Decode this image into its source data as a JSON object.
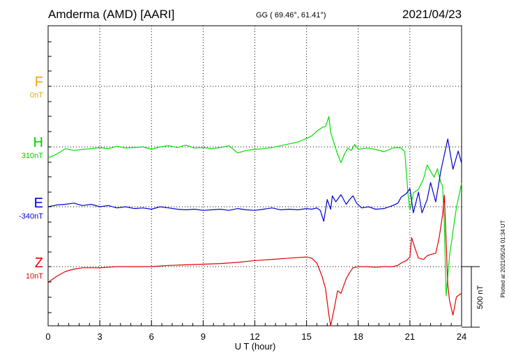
{
  "header": {
    "station": "Amderma (AMD)  [AARI]",
    "coords": "GG ( 69.46°,  61.41°)",
    "date": "2021/04/23"
  },
  "plotted_note": "Plotted at 2021/05/24 01:34 UT",
  "colors": {
    "F": "#f0a800",
    "H": "#00e000",
    "E": "#0000d0",
    "Z": "#e00000",
    "axis": "#000000"
  },
  "chart_data": {
    "type": "line",
    "xlabel": "U T (hour)",
    "xlim": [
      0,
      24
    ],
    "xticks": [
      "0",
      "3",
      "6",
      "9",
      "12",
      "15",
      "18",
      "21",
      "24"
    ],
    "scale_bar": "500 nT",
    "series": [
      {
        "name": "F",
        "baseline": "0nT",
        "values": []
      },
      {
        "name": "H",
        "baseline": "310nT",
        "x": [
          0,
          0.5,
          1,
          1.5,
          2,
          2.5,
          3,
          3.5,
          4,
          4.5,
          5,
          5.5,
          6,
          6.5,
          7,
          7.5,
          8,
          8.5,
          9,
          9.5,
          10,
          10.5,
          11,
          11.5,
          12,
          12.5,
          13,
          13.5,
          14,
          14.5,
          15,
          15.3,
          15.6,
          15.9,
          16.1,
          16.3,
          16.4,
          16.6,
          16.8,
          17,
          17.2,
          17.4,
          17.6,
          17.8,
          18,
          18.5,
          19,
          19.5,
          20,
          20.3,
          20.5,
          20.7,
          20.8,
          20.9,
          21,
          21.2,
          21.5,
          21.8,
          22,
          22.2,
          22.4,
          22.6,
          22.8,
          22.9,
          23,
          23.1,
          23.3,
          23.5,
          23.7,
          24
        ],
        "values": [
          -90,
          -60,
          -15,
          -30,
          -20,
          -15,
          -5,
          -15,
          5,
          -10,
          -5,
          0,
          -20,
          0,
          10,
          -5,
          15,
          -10,
          -5,
          -15,
          -5,
          10,
          -50,
          -30,
          -20,
          -15,
          -5,
          10,
          25,
          40,
          70,
          90,
          130,
          160,
          170,
          250,
          120,
          30,
          -60,
          -130,
          -60,
          -10,
          -30,
          20,
          -20,
          -10,
          -20,
          -40,
          -10,
          -5,
          -10,
          -40,
          -220,
          -400,
          -520,
          -380,
          -350,
          -260,
          -150,
          -200,
          -250,
          -180,
          -300,
          -320,
          -650,
          -1230,
          -900,
          -700,
          -500,
          -300
        ]
      },
      {
        "name": "E",
        "baseline": "-340nT",
        "x": [
          0,
          0.5,
          1,
          1.5,
          2,
          2.5,
          3,
          3.5,
          4,
          4.5,
          5,
          5.5,
          6,
          6.5,
          7,
          7.5,
          8,
          8.5,
          9,
          9.5,
          10,
          10.5,
          11,
          11.5,
          12,
          12.5,
          13,
          13.5,
          14,
          14.5,
          15,
          15.3,
          15.6,
          15.8,
          16,
          16.2,
          16.4,
          16.5,
          16.7,
          17,
          17.3,
          17.5,
          17.7,
          17.9,
          18.2,
          18.6,
          19,
          19.5,
          20,
          20.3,
          20.5,
          20.8,
          21,
          21.2,
          21.5,
          21.7,
          22,
          22.2,
          22.5,
          22.8,
          23,
          23.2,
          23.5,
          23.8,
          24
        ],
        "values": [
          0,
          15,
          20,
          30,
          10,
          20,
          0,
          10,
          -10,
          0,
          -15,
          -10,
          -20,
          0,
          -10,
          -20,
          -25,
          -20,
          -30,
          -25,
          -20,
          -30,
          -15,
          -25,
          -30,
          -20,
          -10,
          -25,
          -20,
          -25,
          -15,
          -20,
          -10,
          -30,
          -120,
          60,
          -20,
          90,
          40,
          100,
          20,
          60,
          90,
          30,
          -10,
          0,
          -20,
          -15,
          10,
          30,
          80,
          110,
          150,
          -50,
          120,
          -50,
          60,
          200,
          40,
          300,
          430,
          560,
          310,
          460,
          360
        ]
      },
      {
        "name": "Z",
        "baseline": "10nT",
        "x": [
          0,
          0.5,
          1,
          1.5,
          2,
          3,
          4,
          5,
          6,
          7,
          8,
          9,
          10,
          11,
          12,
          13,
          14,
          15,
          15.3,
          15.6,
          15.9,
          16.1,
          16.3,
          16.4,
          16.6,
          16.8,
          17,
          17.3,
          17.5,
          17.7,
          18,
          18.5,
          19,
          19.5,
          20,
          20.3,
          20.5,
          20.8,
          21,
          21.1,
          21.3,
          21.5,
          21.8,
          22,
          22.2,
          22.5,
          22.7,
          22.9,
          23,
          23.2,
          23.3,
          23.5,
          23.7,
          24
        ],
        "values": [
          -130,
          -80,
          -40,
          -20,
          -10,
          -10,
          0,
          0,
          0,
          10,
          15,
          20,
          25,
          35,
          50,
          60,
          70,
          80,
          70,
          30,
          -80,
          -180,
          -400,
          -500,
          -350,
          -200,
          -220,
          -100,
          -50,
          -10,
          0,
          0,
          -5,
          0,
          0,
          10,
          30,
          50,
          80,
          240,
          150,
          70,
          60,
          90,
          100,
          110,
          240,
          430,
          590,
          -150,
          -280,
          -400,
          -250,
          -220
        ]
      }
    ]
  }
}
